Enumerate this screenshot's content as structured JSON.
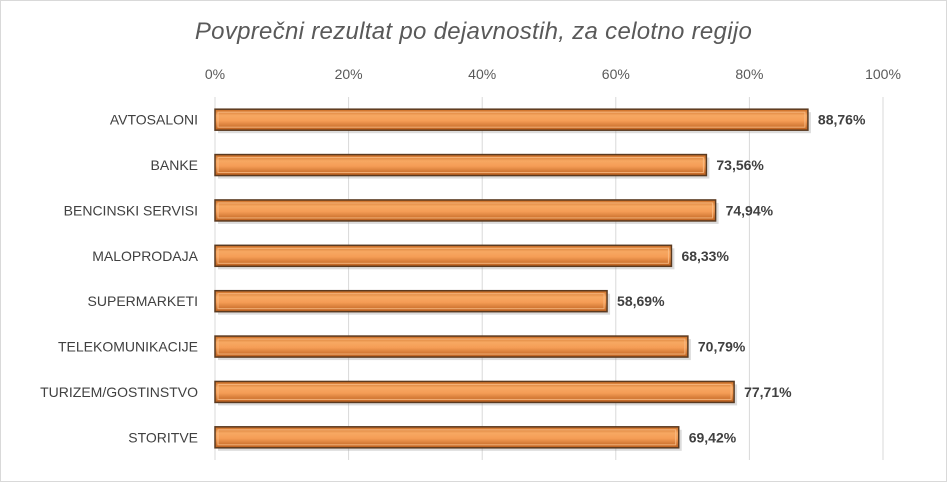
{
  "chart_data": {
    "type": "bar",
    "orientation": "horizontal",
    "title": "Povprečni rezultat po dejavnostih, za celotno regijo",
    "xlabel": "",
    "ylabel": "",
    "xlim": [
      0,
      100
    ],
    "xticks": [
      "0%",
      "20%",
      "40%",
      "60%",
      "80%",
      "100%"
    ],
    "xtick_values": [
      0,
      20,
      40,
      60,
      80,
      100
    ],
    "categories": [
      "AVTOSALONI",
      "BANKE",
      "BENCINSKI SERVISI",
      "MALOPRODAJA",
      "SUPERMARKETI",
      "TELEKOMUNIKACIJE",
      "TURIZEM/GOSTINSTVO",
      "STORITVE"
    ],
    "values": [
      88.76,
      73.56,
      74.94,
      68.33,
      58.69,
      70.79,
      77.71,
      69.42
    ],
    "data_labels": [
      "88,76%",
      "73,56%",
      "74,94%",
      "68,33%",
      "58,69%",
      "70,79%",
      "77,71%",
      "69,42%"
    ],
    "grid": true,
    "legend": "none",
    "bar_color": "#f59d56",
    "bar_edge_color": "#5a3a20"
  }
}
